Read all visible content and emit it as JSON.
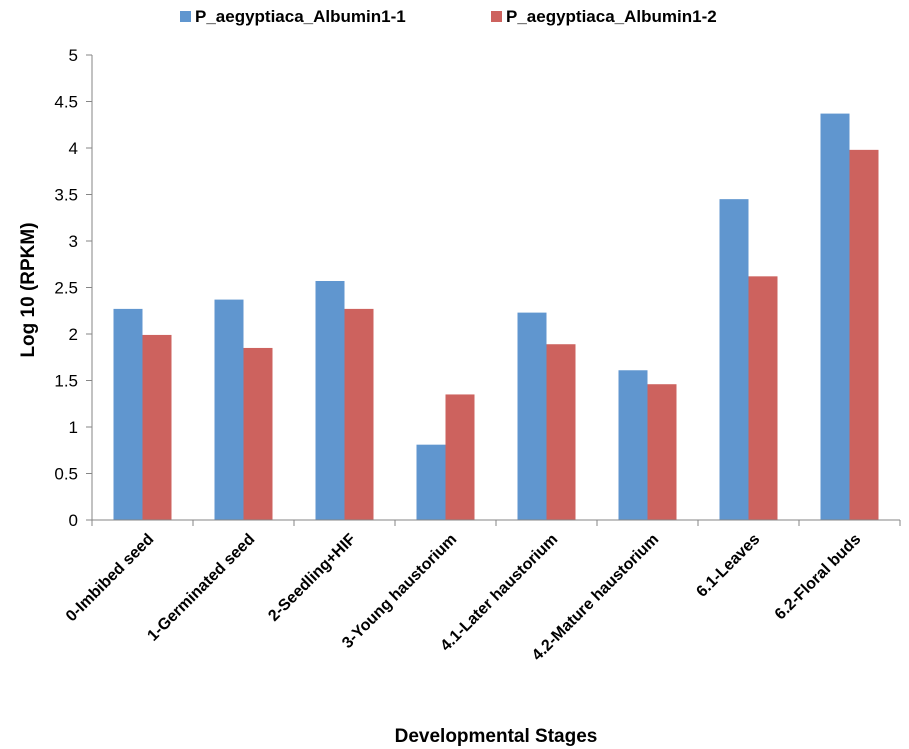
{
  "chart_data": {
    "type": "bar",
    "title": "",
    "xlabel": "Developmental Stages",
    "ylabel": "Log 10 (RPKM)",
    "ylim": [
      0,
      5
    ],
    "yticks": [
      "0",
      "0.5",
      "1",
      "1.5",
      "2",
      "2.5",
      "3",
      "3.5",
      "4",
      "4.5",
      "5"
    ],
    "grid": false,
    "legend_position": "top",
    "categories": [
      "0-Imbibed seed",
      "1-Germinated seed",
      "2-Seedling+HIF",
      "3-Young haustorium",
      "4.1-Later haustorium",
      "4.2-Mature haustorium",
      "6.1-Leaves",
      "6.2-Floral buds"
    ],
    "series": [
      {
        "name": "P_aegyptiaca_Albumin1-1",
        "color": "#6096cf",
        "values": [
          2.27,
          2.37,
          2.57,
          0.81,
          2.23,
          1.61,
          3.45,
          4.37
        ]
      },
      {
        "name": "P_aegyptiaca_Albumin1-2",
        "color": "#cd625e",
        "values": [
          1.99,
          1.85,
          2.27,
          1.35,
          1.89,
          1.46,
          2.62,
          3.98
        ]
      }
    ]
  }
}
